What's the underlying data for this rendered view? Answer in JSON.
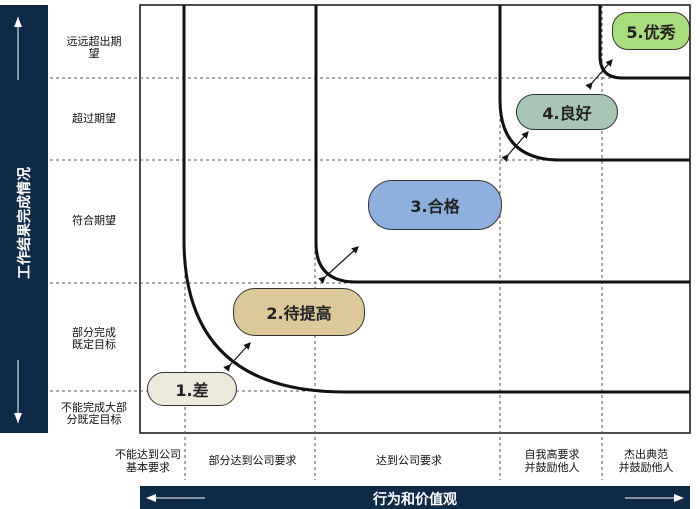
{
  "y_axis": {
    "title": "工作结果完成情况"
  },
  "x_axis": {
    "title": "行为和价值观"
  },
  "rows": [
    {
      "label": "远远超出期\n望"
    },
    {
      "label": "超过期望"
    },
    {
      "label": "符合期望"
    },
    {
      "label": "部分完成\n既定目标"
    },
    {
      "label": "不能完成大部\n分既定目标"
    }
  ],
  "columns": [
    {
      "label": "不能达到公司\n基本要求"
    },
    {
      "label": "部分达到公司要求"
    },
    {
      "label": "达到公司要求"
    },
    {
      "label": "自我高要求\n并鼓励他人"
    },
    {
      "label": "杰出典范\n并鼓励他人"
    }
  ],
  "levels": [
    {
      "label": "1.差",
      "color": "#eeeadb"
    },
    {
      "label": "2.待提高",
      "color": "#dcc89a"
    },
    {
      "label": "3.合格",
      "color": "#8fb0de"
    },
    {
      "label": "4.良好",
      "color": "#a7c6b5"
    },
    {
      "label": "5.优秀",
      "color": "#a8dc7c"
    }
  ]
}
